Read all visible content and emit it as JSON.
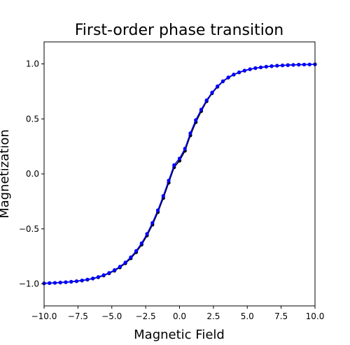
{
  "chart_data": {
    "type": "line",
    "title": "First-order phase transition",
    "xlabel": "Magnetic Field",
    "ylabel": "Magnetization",
    "xlim": [
      -10,
      10
    ],
    "ylim": [
      -1.2,
      1.2
    ],
    "xticks": [
      -10,
      -7.5,
      -5,
      -2.5,
      0,
      2.5,
      5,
      7.5,
      10
    ],
    "xtick_labels": [
      "−10.0",
      "−7.5",
      "−5.0",
      "−2.5",
      "0.0",
      "2.5",
      "5.0",
      "7.5",
      "10.0"
    ],
    "yticks": [
      -1,
      -0.5,
      0,
      0.5,
      1
    ],
    "ytick_labels": [
      "−1.0",
      "−0.5",
      "0.0",
      "0.5",
      "1.0"
    ],
    "grid": false,
    "legend": "none",
    "series": [
      {
        "color": "#000000",
        "marker": "circle",
        "x": [
          -10,
          -9.6,
          -9.2,
          -8.8,
          -8.4,
          -8,
          -7.6,
          -7.2,
          -6.8,
          -6.4,
          -6,
          -5.6,
          -5.2,
          -4.8,
          -4.4,
          -4,
          -3.6,
          -3.2,
          -2.8,
          -2.4,
          -2,
          -1.6,
          -1.2,
          -0.8,
          -0.4,
          0,
          0.4,
          0.8,
          1.2,
          1.6,
          2,
          2.4,
          2.8,
          3.2,
          3.6,
          4,
          4.4,
          4.8,
          5.2,
          5.6,
          6,
          6.4,
          6.8,
          7.2,
          7.6,
          8,
          8.4,
          8.8,
          9.2,
          9.6,
          10
        ],
        "y": [
          -0.995,
          -0.993,
          -0.991,
          -0.988,
          -0.985,
          -0.981,
          -0.976,
          -0.97,
          -0.962,
          -0.952,
          -0.94,
          -0.924,
          -0.904,
          -0.88,
          -0.85,
          -0.813,
          -0.768,
          -0.712,
          -0.643,
          -0.56,
          -0.462,
          -0.348,
          -0.22,
          -0.08,
          0.06,
          0.12,
          0.21,
          0.35,
          0.47,
          0.57,
          0.66,
          0.733,
          0.792,
          0.84,
          0.875,
          0.902,
          0.922,
          0.938,
          0.951,
          0.961,
          0.968,
          0.974,
          0.979,
          0.983,
          0.986,
          0.989,
          0.991,
          0.993,
          0.994,
          0.995,
          0.996
        ]
      },
      {
        "color": "#0000ff",
        "marker": "circle",
        "x": [
          -10,
          -9.6,
          -9.2,
          -8.8,
          -8.4,
          -8,
          -7.6,
          -7.2,
          -6.8,
          -6.4,
          -6,
          -5.6,
          -5.2,
          -4.8,
          -4.4,
          -4,
          -3.6,
          -3.2,
          -2.8,
          -2.4,
          -2,
          -1.6,
          -1.2,
          -0.8,
          -0.4,
          0,
          0.4,
          0.8,
          1.2,
          1.6,
          2,
          2.4,
          2.8,
          3.2,
          3.6,
          4,
          4.4,
          4.8,
          5.2,
          5.6,
          6,
          6.4,
          6.8,
          7.2,
          7.6,
          8,
          8.4,
          8.8,
          9.2,
          9.6,
          10
        ],
        "y": [
          -0.995,
          -0.993,
          -0.99,
          -0.987,
          -0.984,
          -0.98,
          -0.975,
          -0.968,
          -0.96,
          -0.95,
          -0.937,
          -0.92,
          -0.9,
          -0.874,
          -0.843,
          -0.805,
          -0.758,
          -0.7,
          -0.63,
          -0.545,
          -0.445,
          -0.33,
          -0.2,
          -0.06,
          0.08,
          0.14,
          0.23,
          0.37,
          0.49,
          0.585,
          0.67,
          0.74,
          0.797,
          0.843,
          0.878,
          0.904,
          0.924,
          0.94,
          0.952,
          0.962,
          0.969,
          0.975,
          0.98,
          0.984,
          0.987,
          0.989,
          0.991,
          0.993,
          0.994,
          0.995,
          0.996
        ]
      }
    ]
  }
}
